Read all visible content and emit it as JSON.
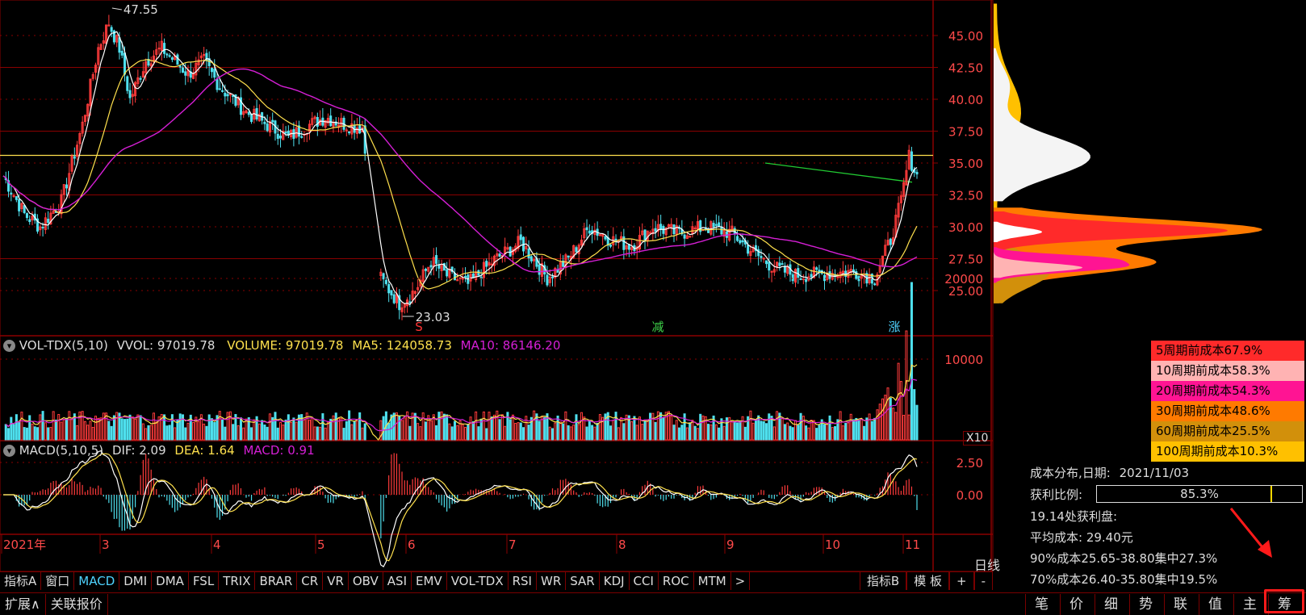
{
  "chart": {
    "price_ticks": [
      "45.00",
      "42.50",
      "40.00",
      "37.50",
      "35.00",
      "32.50",
      "30.00",
      "27.50",
      "25.00"
    ],
    "high_label": "47.55",
    "low_label": "23.03",
    "signals": [
      {
        "text": "S",
        "color": "#ff3333"
      },
      {
        "text": "减",
        "color": "#3fd24a"
      },
      {
        "text": "涨",
        "color": "#4fd3ff"
      }
    ]
  },
  "volume": {
    "title": "VOL-TDX(5,10)",
    "vvol": "VVOL: 97019.78",
    "volume": "VOLUME: 97019.78",
    "ma5": "MA5: 124058.73",
    "ma10": "MA10: 86146.20",
    "ticks": [
      "20000",
      "10000"
    ],
    "multiplier": "X10"
  },
  "macd": {
    "title": "MACD(5,10,5)",
    "dif": "DIF: 2.09",
    "dea": "DEA: 1.64",
    "macd": "MACD: 0.91",
    "ticks": [
      "2.50",
      "0.00"
    ]
  },
  "xaxis": {
    "labels": [
      "2021年",
      "3",
      "4",
      "5",
      "6",
      "7",
      "8",
      "9",
      "10",
      "11"
    ],
    "period": "日线"
  },
  "tabs": [
    "指标A",
    "窗口",
    "MACD",
    "DMI",
    "DMA",
    "FSL",
    "TRIX",
    "BRAR",
    "CR",
    "VR",
    "OBV",
    "ASI",
    "EMV",
    "VOL-TDX",
    "RSI",
    "WR",
    "SAR",
    "KDJ",
    "CCI",
    "ROC",
    "MTM",
    ">"
  ],
  "tabs_active": "MACD",
  "tabs_right": [
    "指标B",
    "模 板",
    "+",
    "-"
  ],
  "bottom_tabs": [
    "扩展∧",
    "关联报价"
  ],
  "side_tabs": [
    "笔",
    "价",
    "细",
    "势",
    "联",
    "值",
    "主",
    "筹"
  ],
  "cost_legend": [
    {
      "label": "5周期前成本67.9%",
      "color": "#ff2a2a"
    },
    {
      "label": "10周期前成本58.3%",
      "color": "#ffb3b3"
    },
    {
      "label": "20周期前成本54.3%",
      "color": "#ff1493"
    },
    {
      "label": "30周期前成本48.6%",
      "color": "#ff7a00"
    },
    {
      "label": "60周期前成本25.5%",
      "color": "#d2900b"
    },
    {
      "label": "100周期前成本10.3%",
      "color": "#ffc000"
    }
  ],
  "cost_info": {
    "date_label": "成本分布,日期:",
    "date": "2021/11/03",
    "ratio_label": "获利比例:",
    "ratio": "85.3%",
    "ratio_value": 0.853,
    "profit_line": "19.14处获利盘:",
    "avg_cost": "平均成本: 29.40元",
    "cost90": "90%成本25.65-38.80集中27.3%",
    "cost70": "70%成本26.40-35.80集中19.5%"
  },
  "colors": {
    "up": "#ff3b3b",
    "down": "#4fe0ee",
    "ma_short": "#ffffff",
    "ma_mid": "#ffe14d",
    "ma_long": "#d51fd5",
    "grid": "#8a0000"
  }
}
